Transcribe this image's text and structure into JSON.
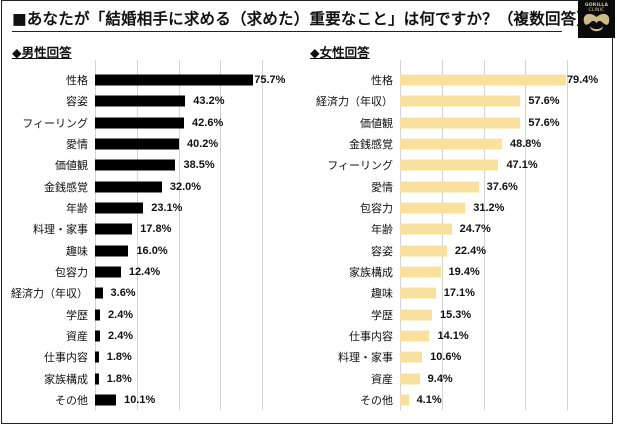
{
  "title": "■あなたが「結婚相手に求める（求めた）重要なこと」は何ですか？（複数回答）",
  "logo": {
    "text_line1": "GORILLA",
    "text_line2": "CLINIC",
    "icon": "gorilla-logo-icon"
  },
  "colors": {
    "male_bar": "#000000",
    "female_bar": "#F9E09C",
    "gridline": "#D4D4D4",
    "border": "#222222"
  },
  "chart_data": [
    {
      "type": "bar",
      "orientation": "horizontal",
      "title": "◆男性回答",
      "xlabel": "",
      "ylabel": "",
      "xlim": [
        0,
        100
      ],
      "gridlines_at": [
        0,
        20,
        40,
        60,
        80
      ],
      "grid": true,
      "value_suffix": "%",
      "categories": [
        "性格",
        "容姿",
        "フィーリング",
        "愛情",
        "価値観",
        "金銭感覚",
        "年齢",
        "料理・家事",
        "趣味",
        "包容力",
        "経済力（年収）",
        "学歴",
        "資産",
        "仕事内容",
        "家族構成",
        "その他"
      ],
      "values": [
        75.7,
        43.2,
        42.6,
        40.2,
        38.5,
        32.0,
        23.1,
        17.8,
        16.0,
        12.4,
        3.6,
        2.4,
        2.4,
        1.8,
        1.8,
        10.1
      ],
      "value_labels": [
        "75.7%",
        "43.2%",
        "42.6%",
        "40.2%",
        "38.5%",
        "32.0%",
        "23.1%",
        "17.8%",
        "16.0%",
        "12.4%",
        "3.6%",
        "2.4%",
        "2.4%",
        "1.8%",
        "1.8%",
        "10.1%"
      ],
      "bar_color": "#000000"
    },
    {
      "type": "bar",
      "orientation": "horizontal",
      "title": "◆女性回答",
      "xlabel": "",
      "ylabel": "",
      "xlim": [
        0,
        100
      ],
      "gridlines_at": [
        0,
        20,
        40,
        60,
        80
      ],
      "grid": true,
      "value_suffix": "%",
      "categories": [
        "性格",
        "経済力（年収）",
        "価値観",
        "金銭感覚",
        "フィーリング",
        "愛情",
        "包容力",
        "年齢",
        "容姿",
        "家族構成",
        "趣味",
        "学歴",
        "仕事内容",
        "料理・家事",
        "資産",
        "その他"
      ],
      "values": [
        79.4,
        57.6,
        57.6,
        48.8,
        47.1,
        37.6,
        31.2,
        24.7,
        22.4,
        19.4,
        17.1,
        15.3,
        14.1,
        10.6,
        9.4,
        4.1
      ],
      "value_labels": [
        "79.4%",
        "57.6%",
        "57.6%",
        "48.8%",
        "47.1%",
        "37.6%",
        "31.2%",
        "24.7%",
        "22.4%",
        "19.4%",
        "17.1%",
        "15.3%",
        "14.1%",
        "10.6%",
        "9.4%",
        "4.1%"
      ],
      "bar_color": "#F9E09C"
    }
  ]
}
